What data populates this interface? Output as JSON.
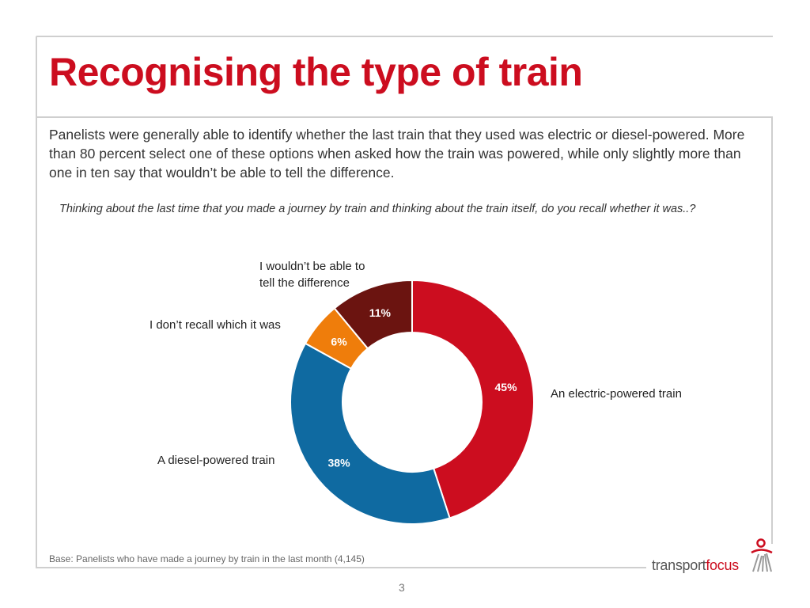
{
  "title": "Recognising the type of train",
  "intro": "Panelists were generally able to identify whether the last train that they used was electric or diesel-powered. More than 80 percent select one of these options when asked how the train was powered, while only slightly more than one in ten say that wouldn’t be able to tell the difference.",
  "question": "Thinking about the last time that you made a journey by train and thinking about the train itself, do you recall whether it was..?",
  "chart_data": {
    "type": "pie",
    "donut": true,
    "slices": [
      {
        "label": "An electric-powered train",
        "value": 45,
        "display": "45%",
        "color": "#cc0d1f"
      },
      {
        "label": "A diesel-powered train",
        "value": 38,
        "display": "38%",
        "color": "#0f6aa1"
      },
      {
        "label": "I don’t recall which it was",
        "value": 6,
        "display": "6%",
        "color": "#ef7d0b"
      },
      {
        "label": "I wouldn’t be able to tell the difference",
        "value": 11,
        "display": "11%",
        "color": "#6b1410"
      }
    ],
    "legend": "none",
    "data_labels": true
  },
  "labels": {
    "electric": "An electric-powered train",
    "diesel": "A diesel-powered train",
    "dont_recall": "I don’t recall which it was",
    "cant_tell_line1": "I wouldn’t be able to",
    "cant_tell_line2": "tell the difference"
  },
  "base_note": "Base: Panelists who have made a journey by train in the last month (4,145)",
  "page_number": "3",
  "logo": {
    "part_a": "transport",
    "part_b": "focus"
  }
}
